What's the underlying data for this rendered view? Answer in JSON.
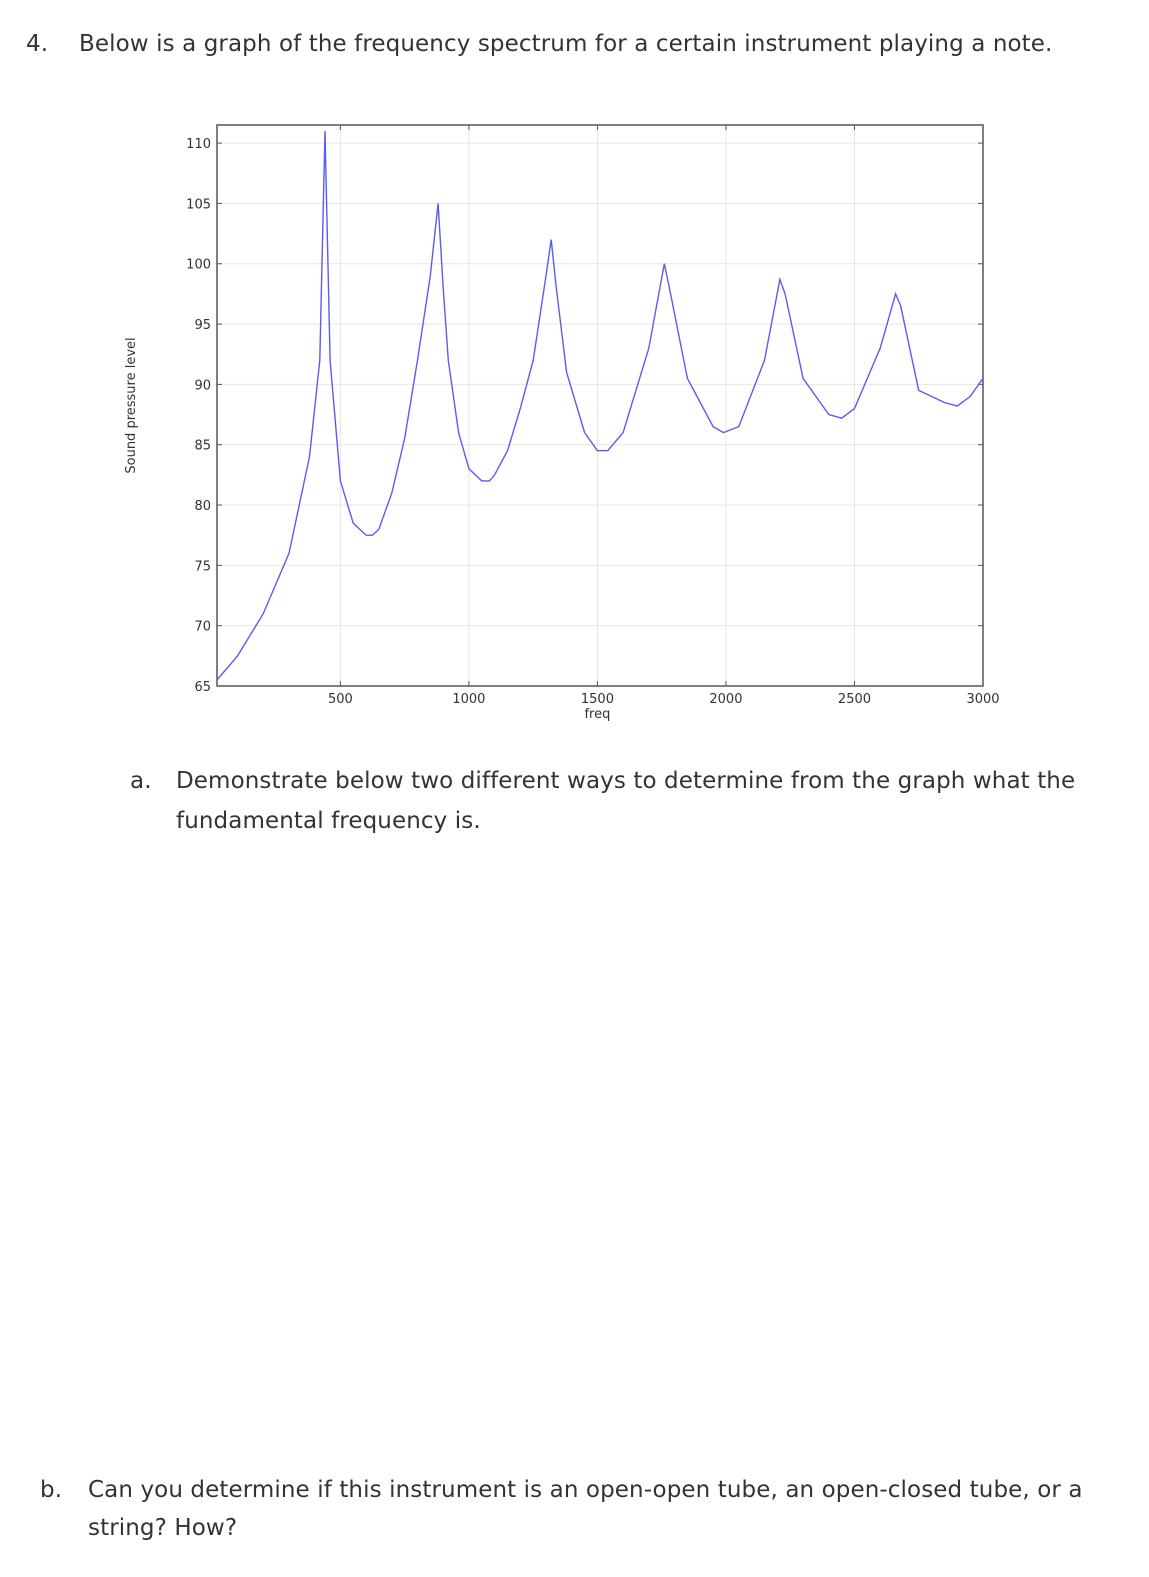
{
  "question": {
    "number": "4.",
    "text": "Below is a graph of the frequency spectrum for a certain instrument playing a note."
  },
  "part_a": {
    "label": "a.",
    "line1": "Demonstrate below two different ways to determine from the graph what the",
    "line2": "fundamental frequency is."
  },
  "part_b": {
    "label": "b.",
    "line1": "Can you determine if this instrument is an open-open tube, an open-closed tube, or a",
    "line2": "string? How?"
  },
  "colors": {
    "series": "#5a5cf0",
    "grid": "#e6e6e6",
    "axis": "#555555"
  },
  "chart_data": {
    "type": "line",
    "title": "",
    "xlabel": "freq",
    "ylabel": "Sound pressure level",
    "xlim": [
      20,
      3000
    ],
    "ylim": [
      65,
      111.5
    ],
    "x_ticks": [
      500,
      1000,
      1500,
      2000,
      2500,
      3000
    ],
    "y_ticks": [
      65,
      70,
      75,
      80,
      85,
      90,
      95,
      100,
      105,
      110
    ],
    "grid": true,
    "series": [
      {
        "x": [
          20,
          100,
          200,
          300,
          380,
          420,
          440,
          460,
          500,
          550,
          600,
          625,
          650,
          700,
          750,
          800,
          850,
          880,
          900,
          920,
          960,
          1000,
          1050,
          1080,
          1100,
          1150,
          1200,
          1250,
          1300,
          1320,
          1340,
          1380,
          1450,
          1500,
          1540,
          1600,
          1700,
          1760,
          1780,
          1850,
          1950,
          1990,
          2050,
          2150,
          2210,
          2230,
          2300,
          2400,
          2450,
          2500,
          2600,
          2660,
          2680,
          2750,
          2850,
          2900,
          2950,
          3000
        ],
        "values": [
          65.5,
          67.5,
          71,
          76,
          84,
          92,
          111,
          92,
          82,
          78.5,
          77.5,
          77.5,
          78,
          81,
          85.5,
          92,
          99,
          105,
          98,
          92,
          86,
          83,
          82,
          82,
          82.5,
          84.5,
          88,
          92,
          99,
          102,
          98,
          91,
          86,
          84.5,
          84.5,
          86,
          93,
          100,
          98,
          90.5,
          86.5,
          86,
          86.5,
          92,
          98.7,
          97.5,
          90.5,
          87.5,
          87.2,
          88,
          93,
          97.5,
          96.5,
          89.5,
          88.5,
          88.2,
          89,
          90.5
        ]
      }
    ]
  }
}
